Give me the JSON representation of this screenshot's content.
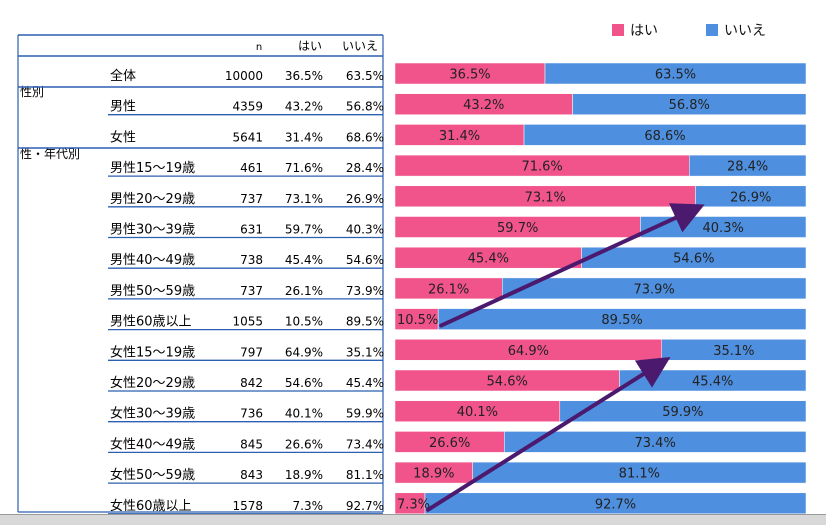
{
  "table": {
    "headers": {
      "n": "n",
      "yes": "はい",
      "no": "いいえ"
    },
    "group_labels": [
      "性別",
      "性・年代別"
    ],
    "rows": [
      {
        "label": "全体",
        "n": "10000",
        "yes": "36.5%",
        "no": "63.5%"
      },
      {
        "label": "男性",
        "n": "4359",
        "yes": "43.2%",
        "no": "56.8%"
      },
      {
        "label": "女性",
        "n": "5641",
        "yes": "31.4%",
        "no": "68.6%"
      },
      {
        "label": "男性15～19歳",
        "n": "461",
        "yes": "71.6%",
        "no": "28.4%"
      },
      {
        "label": "男性20～29歳",
        "n": "737",
        "yes": "73.1%",
        "no": "26.9%"
      },
      {
        "label": "男性30～39歳",
        "n": "631",
        "yes": "59.7%",
        "no": "40.3%"
      },
      {
        "label": "男性40～49歳",
        "n": "738",
        "yes": "45.4%",
        "no": "54.6%"
      },
      {
        "label": "男性50～59歳",
        "n": "737",
        "yes": "26.1%",
        "no": "73.9%"
      },
      {
        "label": "男性60歳以上",
        "n": "1055",
        "yes": "10.5%",
        "no": "89.5%"
      },
      {
        "label": "女性15～19歳",
        "n": "797",
        "yes": "64.9%",
        "no": "35.1%"
      },
      {
        "label": "女性20～29歳",
        "n": "842",
        "yes": "54.6%",
        "no": "45.4%"
      },
      {
        "label": "女性30～39歳",
        "n": "736",
        "yes": "40.1%",
        "no": "59.9%"
      },
      {
        "label": "女性40～49歳",
        "n": "845",
        "yes": "26.6%",
        "no": "73.4%"
      },
      {
        "label": "女性50～59歳",
        "n": "843",
        "yes": "18.9%",
        "no": "81.1%"
      },
      {
        "label": "女性60歳以上",
        "n": "1578",
        "yes": "7.3%",
        "no": "92.7%"
      }
    ]
  },
  "colors": {
    "yes": "#f0548b",
    "no": "#4f8fdf",
    "table_lines": "#2b5fb0",
    "arrow": "#4b1a6e"
  },
  "chart_data": {
    "type": "bar",
    "stacked": true,
    "orientation": "horizontal",
    "percent_stacked": true,
    "categories": [
      "全体",
      "男性",
      "女性",
      "男性15～19歳",
      "男性20～29歳",
      "男性30～39歳",
      "男性40～49歳",
      "男性50～59歳",
      "男性60歳以上",
      "女性15～19歳",
      "女性20～29歳",
      "女性30～39歳",
      "女性40～49歳",
      "女性50～59歳",
      "女性60歳以上"
    ],
    "series": [
      {
        "name": "はい",
        "values": [
          36.5,
          43.2,
          31.4,
          71.6,
          73.1,
          59.7,
          45.4,
          26.1,
          10.5,
          64.9,
          54.6,
          40.1,
          26.6,
          18.9,
          7.3
        ]
      },
      {
        "name": "いいえ",
        "values": [
          63.5,
          56.8,
          68.6,
          28.4,
          26.9,
          40.3,
          54.6,
          73.9,
          89.5,
          35.1,
          45.4,
          59.9,
          73.4,
          81.1,
          92.7
        ]
      }
    ],
    "legend": {
      "position": "top-right",
      "entries": [
        "はい",
        "いいえ"
      ]
    },
    "annotations": [
      {
        "type": "arrow",
        "from_category": "男性60歳以上",
        "from_value": 10.5,
        "to_category": "男性20～29歳",
        "to_value": 73.1
      },
      {
        "type": "arrow",
        "from_category": "女性60歳以上",
        "from_value": 7.3,
        "to_category": "女性15～19歳",
        "to_value": 64.9
      }
    ],
    "xlim": [
      0,
      100
    ]
  }
}
